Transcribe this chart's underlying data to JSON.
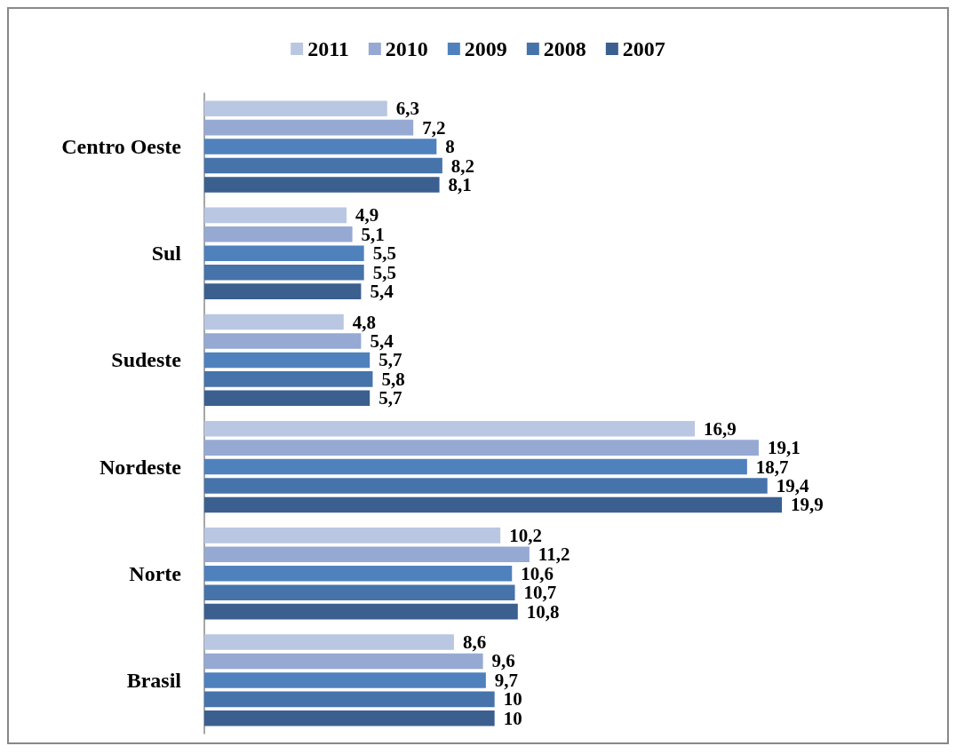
{
  "chart_data": {
    "type": "bar",
    "orientation": "horizontal",
    "categories": [
      "Centro Oeste",
      "Sul",
      "Sudeste",
      "Nordeste",
      "Norte",
      "Brasil"
    ],
    "legend": "top",
    "series": [
      {
        "name": "2011",
        "color": "#b9c7e2",
        "values": [
          6.3,
          4.9,
          4.8,
          16.9,
          10.2,
          8.6
        ],
        "value_labels": [
          "6,3",
          "4,9",
          "4,8",
          "16,9",
          "10,2",
          "8,6"
        ]
      },
      {
        "name": "2010",
        "color": "#95a9d3",
        "values": [
          7.2,
          5.1,
          5.4,
          19.1,
          11.2,
          9.6
        ],
        "value_labels": [
          "7,2",
          "5,1",
          "5,4",
          "19,1",
          "11,2",
          "9,6"
        ]
      },
      {
        "name": "2009",
        "color": "#4f81bd",
        "values": [
          8,
          5.5,
          5.7,
          18.7,
          10.6,
          9.7
        ],
        "value_labels": [
          "8",
          "5,5",
          "5,7",
          "18,7",
          "10,6",
          "9,7"
        ]
      },
      {
        "name": "2008",
        "color": "#4673aa",
        "values": [
          8.2,
          5.5,
          5.8,
          19.4,
          10.7,
          10
        ],
        "value_labels": [
          "8,2",
          "5,5",
          "5,8",
          "19,4",
          "10,7",
          "10"
        ]
      },
      {
        "name": "2007",
        "color": "#3b5f8f",
        "values": [
          8.1,
          5.4,
          5.7,
          19.9,
          10.8,
          10
        ],
        "value_labels": [
          "8,1",
          "5,4",
          "5,7",
          "19,9",
          "10,8",
          "10"
        ]
      }
    ]
  }
}
